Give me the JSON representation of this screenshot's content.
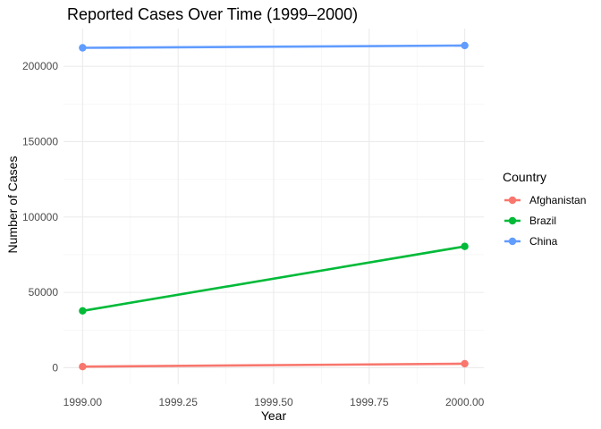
{
  "chart_data": {
    "type": "line",
    "title": "Reported Cases Over Time (1999–2000)",
    "xlabel": "Year",
    "ylabel": "Number of Cases",
    "x": [
      1999,
      2000
    ],
    "xlim": [
      1998.95,
      2000.05
    ],
    "ylim": [
      -11000,
      225000
    ],
    "x_ticks": [
      1999.0,
      1999.25,
      1999.5,
      1999.75,
      2000.0
    ],
    "x_tick_labels": [
      "1999.00",
      "1999.25",
      "1999.50",
      "1999.75",
      "2000.00"
    ],
    "y_ticks": [
      0,
      50000,
      100000,
      150000,
      200000
    ],
    "y_tick_labels": [
      "0",
      "50000",
      "100000",
      "150000",
      "200000"
    ],
    "grid": true,
    "legend": {
      "title": "Country",
      "position": "right"
    },
    "series": [
      {
        "name": "Afghanistan",
        "color": "#F8766D",
        "values": [
          745,
          2666
        ]
      },
      {
        "name": "Brazil",
        "color": "#00BA38",
        "values": [
          37737,
          80488
        ]
      },
      {
        "name": "China",
        "color": "#619CFF",
        "values": [
          212258,
          213766
        ]
      }
    ]
  }
}
